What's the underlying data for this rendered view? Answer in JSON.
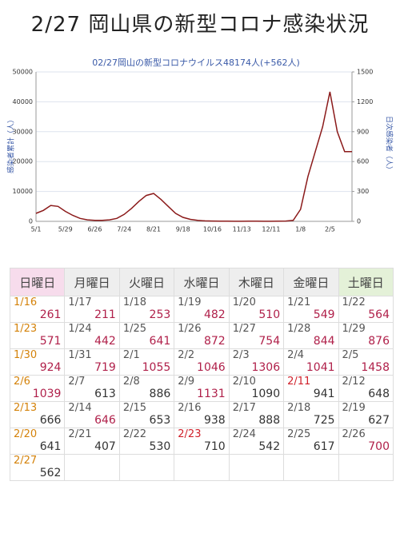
{
  "header": {
    "title": "2/27 岡山県の新型コロナ感染状況"
  },
  "chart_data": {
    "type": "line",
    "title": "02/27岡山の新型コロナウイルス48174人(+562人)",
    "y_label": "感染者累計（人）",
    "y2_label": "日次感染者（人）",
    "categories": [
      "5/1",
      "5/8",
      "5/15",
      "5/22",
      "5/29",
      "6/5",
      "6/12",
      "6/19",
      "6/26",
      "7/3",
      "7/10",
      "7/17",
      "7/24",
      "7/31",
      "8/7",
      "8/14",
      "8/21",
      "8/28",
      "9/4",
      "9/11",
      "9/18",
      "9/25",
      "10/2",
      "10/9",
      "10/16",
      "10/23",
      "10/30",
      "11/6",
      "11/13",
      "11/20",
      "11/27",
      "12/4",
      "12/11",
      "12/18",
      "12/25",
      "1/1",
      "1/8",
      "1/15",
      "1/22",
      "1/29",
      "2/5",
      "2/12",
      "2/19",
      "2/26"
    ],
    "xtick_every": 4,
    "series": [
      {
        "name": "日次感染者",
        "color": "#8b1a1a",
        "axis": "y2",
        "values": [
          80,
          110,
          160,
          150,
          100,
          60,
          30,
          15,
          10,
          10,
          15,
          30,
          70,
          130,
          200,
          260,
          280,
          220,
          150,
          80,
          40,
          20,
          10,
          5,
          3,
          2,
          2,
          1,
          1,
          2,
          2,
          1,
          1,
          2,
          3,
          10,
          120,
          450,
          700,
          950,
          1300,
          900,
          700,
          700
        ]
      }
    ],
    "ylim": [
      0,
      50000
    ],
    "yticks": [
      0,
      10000,
      20000,
      30000,
      40000,
      50000
    ],
    "y2lim": [
      0,
      1500
    ],
    "y2ticks": [
      0,
      300,
      600,
      900,
      1200,
      1500
    ],
    "grid": true
  },
  "table": {
    "headers": [
      "日曜日",
      "月曜日",
      "火曜日",
      "水曜日",
      "木曜日",
      "金曜日",
      "土曜日"
    ],
    "header_colors": [
      "#f7dcec",
      "#eeeeee",
      "#eeeeee",
      "#eeeeee",
      "#eeeeee",
      "#eeeeee",
      "#e4f1d8"
    ],
    "rows": [
      [
        {
          "date": "1/16",
          "count": 261,
          "date_color": "#d4820a",
          "count_color": "#b0204a"
        },
        {
          "date": "1/17",
          "count": 211,
          "date_color": "#555555",
          "count_color": "#b0204a"
        },
        {
          "date": "1/18",
          "count": 253,
          "date_color": "#555555",
          "count_color": "#b0204a"
        },
        {
          "date": "1/19",
          "count": 482,
          "date_color": "#555555",
          "count_color": "#b0204a"
        },
        {
          "date": "1/20",
          "count": 510,
          "date_color": "#555555",
          "count_color": "#b0204a"
        },
        {
          "date": "1/21",
          "count": 549,
          "date_color": "#555555",
          "count_color": "#b0204a"
        },
        {
          "date": "1/22",
          "count": 564,
          "date_color": "#555555",
          "count_color": "#b0204a"
        }
      ],
      [
        {
          "date": "1/23",
          "count": 571,
          "date_color": "#d4820a",
          "count_color": "#b0204a"
        },
        {
          "date": "1/24",
          "count": 442,
          "date_color": "#555555",
          "count_color": "#b0204a"
        },
        {
          "date": "1/25",
          "count": 641,
          "date_color": "#555555",
          "count_color": "#b0204a"
        },
        {
          "date": "1/26",
          "count": 872,
          "date_color": "#555555",
          "count_color": "#b0204a"
        },
        {
          "date": "1/27",
          "count": 754,
          "date_color": "#555555",
          "count_color": "#b0204a"
        },
        {
          "date": "1/28",
          "count": 844,
          "date_color": "#555555",
          "count_color": "#b0204a"
        },
        {
          "date": "1/29",
          "count": 876,
          "date_color": "#555555",
          "count_color": "#b0204a"
        }
      ],
      [
        {
          "date": "1/30",
          "count": 924,
          "date_color": "#d4820a",
          "count_color": "#b0204a"
        },
        {
          "date": "1/31",
          "count": 719,
          "date_color": "#555555",
          "count_color": "#b0204a"
        },
        {
          "date": "2/1",
          "count": 1055,
          "date_color": "#555555",
          "count_color": "#b0204a"
        },
        {
          "date": "2/2",
          "count": 1046,
          "date_color": "#555555",
          "count_color": "#b0204a"
        },
        {
          "date": "2/3",
          "count": 1306,
          "date_color": "#555555",
          "count_color": "#b0204a"
        },
        {
          "date": "2/4",
          "count": 1041,
          "date_color": "#555555",
          "count_color": "#b0204a"
        },
        {
          "date": "2/5",
          "count": 1458,
          "date_color": "#555555",
          "count_color": "#b0204a"
        }
      ],
      [
        {
          "date": "2/6",
          "count": 1039,
          "date_color": "#d4820a",
          "count_color": "#b0204a"
        },
        {
          "date": "2/7",
          "count": 613,
          "date_color": "#555555",
          "count_color": "#333333"
        },
        {
          "date": "2/8",
          "count": 886,
          "date_color": "#555555",
          "count_color": "#333333"
        },
        {
          "date": "2/9",
          "count": 1131,
          "date_color": "#555555",
          "count_color": "#b0204a"
        },
        {
          "date": "2/10",
          "count": 1090,
          "date_color": "#555555",
          "count_color": "#333333"
        },
        {
          "date": "2/11",
          "count": 941,
          "date_color": "#d0202a",
          "count_color": "#333333"
        },
        {
          "date": "2/12",
          "count": 648,
          "date_color": "#555555",
          "count_color": "#333333"
        }
      ],
      [
        {
          "date": "2/13",
          "count": 666,
          "date_color": "#d4820a",
          "count_color": "#333333"
        },
        {
          "date": "2/14",
          "count": 646,
          "date_color": "#555555",
          "count_color": "#b0204a"
        },
        {
          "date": "2/15",
          "count": 653,
          "date_color": "#555555",
          "count_color": "#333333"
        },
        {
          "date": "2/16",
          "count": 938,
          "date_color": "#555555",
          "count_color": "#333333"
        },
        {
          "date": "2/17",
          "count": 888,
          "date_color": "#555555",
          "count_color": "#333333"
        },
        {
          "date": "2/18",
          "count": 725,
          "date_color": "#555555",
          "count_color": "#333333"
        },
        {
          "date": "2/19",
          "count": 627,
          "date_color": "#555555",
          "count_color": "#333333"
        }
      ],
      [
        {
          "date": "2/20",
          "count": 641,
          "date_color": "#d4820a",
          "count_color": "#333333"
        },
        {
          "date": "2/21",
          "count": 407,
          "date_color": "#555555",
          "count_color": "#333333"
        },
        {
          "date": "2/22",
          "count": 530,
          "date_color": "#555555",
          "count_color": "#333333"
        },
        {
          "date": "2/23",
          "count": 710,
          "date_color": "#d0202a",
          "count_color": "#333333"
        },
        {
          "date": "2/24",
          "count": 542,
          "date_color": "#555555",
          "count_color": "#333333"
        },
        {
          "date": "2/25",
          "count": 617,
          "date_color": "#555555",
          "count_color": "#333333"
        },
        {
          "date": "2/26",
          "count": 700,
          "date_color": "#555555",
          "count_color": "#b0204a"
        }
      ],
      [
        {
          "date": "2/27",
          "count": 562,
          "date_color": "#d4820a",
          "count_color": "#333333"
        }
      ]
    ]
  }
}
